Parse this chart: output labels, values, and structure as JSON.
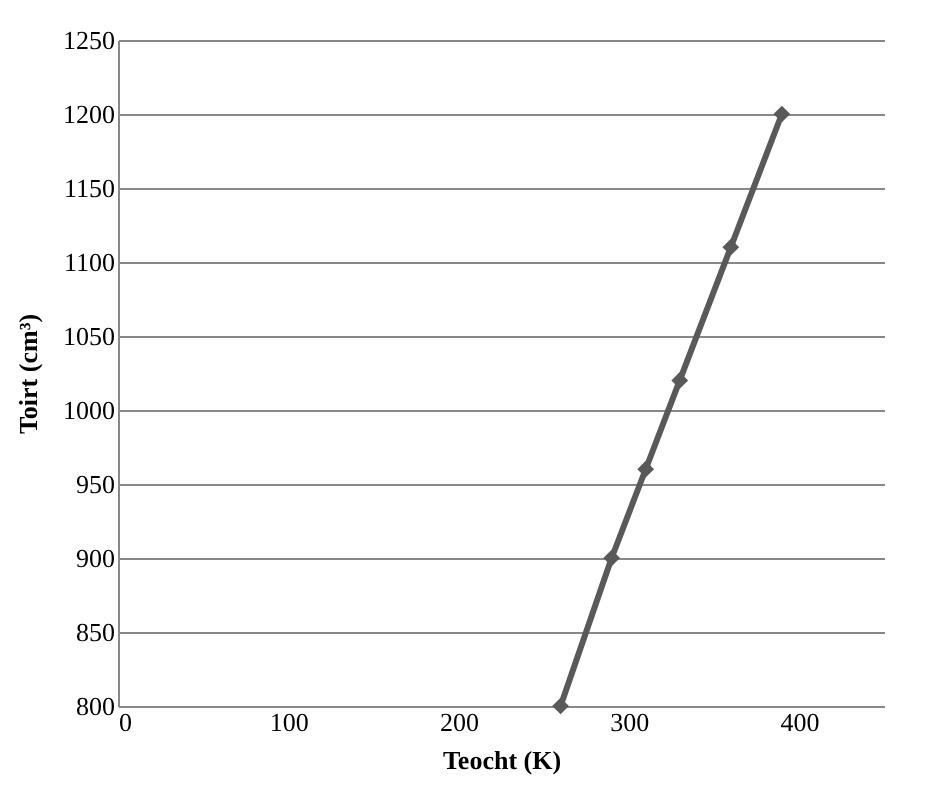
{
  "chart_data": {
    "type": "line",
    "xlabel": "Teocht  (K)",
    "ylabel": "Toirt (cm³)",
    "x": [
      260,
      290,
      310,
      330,
      360,
      390
    ],
    "series": [
      {
        "color": "#595959",
        "values": [
          800,
          900,
          960,
          1020,
          1110,
          1200
        ]
      }
    ],
    "xlim": [
      0,
      450
    ],
    "xticks": [
      0,
      100,
      200,
      300,
      400
    ],
    "ylim": [
      800,
      1250
    ],
    "yticks": [
      800,
      850,
      900,
      950,
      1000,
      1050,
      1100,
      1150,
      1200,
      1250
    ],
    "grid": "y",
    "marker": "diamond",
    "line_style": "solid"
  }
}
